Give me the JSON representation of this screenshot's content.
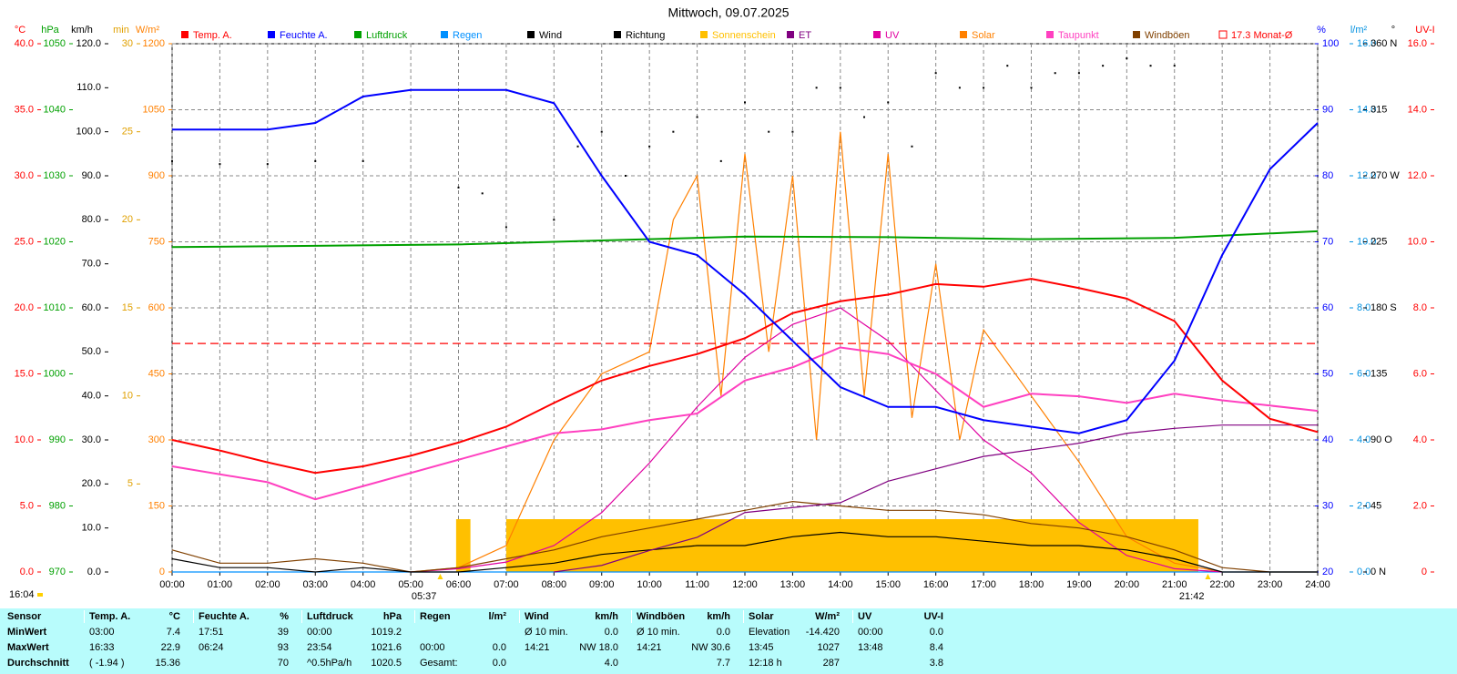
{
  "chart_data": {
    "type": "line",
    "title": "Mittwoch, 09.07.2025",
    "timestamp": "16:04",
    "grid": true,
    "xlim": [
      0,
      24
    ],
    "xticks": [
      {
        "value": 0,
        "label": "00:00"
      },
      {
        "value": 1,
        "label": "01:00"
      },
      {
        "value": 2,
        "label": "02:00"
      },
      {
        "value": 3,
        "label": "03:00"
      },
      {
        "value": 4,
        "label": "04:00"
      },
      {
        "value": 5,
        "label": "05:00"
      },
      {
        "value": 6,
        "label": "06:00"
      },
      {
        "value": 7,
        "label": "07:00"
      },
      {
        "value": 8,
        "label": "08:00"
      },
      {
        "value": 9,
        "label": "09:00"
      },
      {
        "value": 10,
        "label": "10:00"
      },
      {
        "value": 11,
        "label": "11:00"
      },
      {
        "value": 12,
        "label": "12:00"
      },
      {
        "value": 13,
        "label": "13:00"
      },
      {
        "value": 14,
        "label": "14:00"
      },
      {
        "value": 15,
        "label": "15:00"
      },
      {
        "value": 16,
        "label": "16:00"
      },
      {
        "value": 17,
        "label": "17:00"
      },
      {
        "value": 18,
        "label": "18:00"
      },
      {
        "value": 19,
        "label": "19:00"
      },
      {
        "value": 20,
        "label": "20:00"
      },
      {
        "value": 21,
        "label": "21:00"
      },
      {
        "value": 22,
        "label": "22:00"
      },
      {
        "value": 23,
        "label": "23:00"
      },
      {
        "value": 24,
        "label": "24:00"
      }
    ],
    "sun": [
      {
        "value": 5.617,
        "label": "05:37"
      },
      {
        "value": 21.7,
        "label": "21:42"
      }
    ],
    "axes": [
      {
        "unit": "°C",
        "color": "#ff0000",
        "lim": [
          0,
          40
        ],
        "ticks": [
          {
            "value": 0,
            "label": "0.0"
          },
          {
            "value": 5,
            "label": "5.0"
          },
          {
            "value": 10,
            "label": "10.0"
          },
          {
            "value": 15,
            "label": "15.0"
          },
          {
            "value": 20,
            "label": "20.0"
          },
          {
            "value": 25,
            "label": "25.0"
          },
          {
            "value": 30,
            "label": "30.0"
          },
          {
            "value": 35,
            "label": "35.0"
          },
          {
            "value": 40,
            "label": "40.0"
          }
        ]
      },
      {
        "unit": "hPa",
        "color": "#00a000",
        "lim": [
          970,
          1050
        ],
        "ticks": [
          970,
          980,
          990,
          1000,
          1010,
          1020,
          1030,
          1040,
          1050
        ]
      },
      {
        "unit": "km/h",
        "color": "#000000",
        "lim": [
          0,
          120
        ],
        "ticks": [
          {
            "value": 0,
            "label": "0.0"
          },
          {
            "value": 10,
            "label": "10.0"
          },
          {
            "value": 20,
            "label": "20.0"
          },
          {
            "value": 30,
            "label": "30.0"
          },
          {
            "value": 40,
            "label": "40.0"
          },
          {
            "value": 50,
            "label": "50.0"
          },
          {
            "value": 60,
            "label": "60.0"
          },
          {
            "value": 70,
            "label": "70.0"
          },
          {
            "value": 80,
            "label": "80.0"
          },
          {
            "value": 90,
            "label": "90.0"
          },
          {
            "value": 100,
            "label": "100.0"
          },
          {
            "value": 110,
            "label": "110.0"
          },
          {
            "value": 120,
            "label": "120.0"
          }
        ]
      },
      {
        "unit": "min",
        "color": "#e0a000",
        "lim": [
          0,
          30
        ],
        "ticks": [
          5,
          10,
          15,
          20,
          25,
          30
        ]
      },
      {
        "unit": "W/m²",
        "color": "#ff8000",
        "lim": [
          0,
          1200
        ],
        "ticks": [
          0,
          150,
          300,
          450,
          600,
          750,
          900,
          1050,
          1200
        ]
      },
      {
        "unit": "%",
        "color": "#0000ff",
        "lim": [
          20,
          100
        ],
        "ticks": [
          20,
          30,
          40,
          50,
          60,
          70,
          80,
          90,
          100
        ]
      },
      {
        "unit": "l/m²",
        "color": "#0090e0",
        "lim": [
          0,
          16
        ],
        "ticks": [
          {
            "value": 0,
            "label": "0.0"
          },
          {
            "value": 2,
            "label": "2.0"
          },
          {
            "value": 4,
            "label": "4.0"
          },
          {
            "value": 6,
            "label": "6.0"
          },
          {
            "value": 8,
            "label": "8.0"
          },
          {
            "value": 10,
            "label": "10.0"
          },
          {
            "value": 12,
            "label": "12.0"
          },
          {
            "value": 14,
            "label": "14.0"
          },
          {
            "value": 16,
            "label": "16.0"
          }
        ]
      },
      {
        "unit": "°",
        "color": "#000000",
        "lim": [
          0,
          360
        ],
        "ticks": [
          {
            "value": 0,
            "label": "0  N"
          },
          45,
          {
            "value": 90,
            "label": "90  O"
          },
          135,
          {
            "value": 180,
            "label": "180  S"
          },
          225,
          {
            "value": 270,
            "label": "270  W"
          },
          315,
          {
            "value": 360,
            "label": "360  N"
          }
        ]
      },
      {
        "unit": "UV-I",
        "color": "#ff0000",
        "lim": [
          0,
          16
        ],
        "ticks": [
          0,
          {
            "value": 2,
            "label": "2.0"
          },
          {
            "value": 4,
            "label": "4.0"
          },
          {
            "value": 6,
            "label": "6.0"
          },
          {
            "value": 8,
            "label": "8.0"
          },
          {
            "value": 10,
            "label": "10.0"
          },
          {
            "value": 12,
            "label": "12.0"
          },
          {
            "value": 14,
            "label": "14.0"
          },
          {
            "value": 16,
            "label": "16.0"
          }
        ]
      }
    ],
    "series": [
      {
        "name": "Temp. A.",
        "color": "#ff0000",
        "type": "line",
        "axis": 0,
        "x": [
          0,
          1,
          2,
          3,
          4,
          5,
          6,
          7,
          8,
          9,
          10,
          11,
          12,
          13,
          14,
          15,
          16,
          17,
          18,
          19,
          20,
          21,
          22,
          23,
          24
        ],
        "values": [
          10.0,
          9.2,
          8.3,
          7.5,
          8.0,
          8.8,
          9.8,
          11.0,
          12.8,
          14.5,
          15.6,
          16.5,
          17.7,
          19.6,
          20.5,
          21.0,
          21.8,
          21.6,
          22.2,
          21.5,
          20.7,
          19.0,
          14.5,
          11.6,
          10.6
        ]
      },
      {
        "name": "Feuchte A.",
        "color": "#0000ff",
        "type": "line",
        "axis": 5,
        "x": [
          0,
          1,
          2,
          3,
          4,
          5,
          6,
          7,
          8,
          9,
          10,
          11,
          12,
          13,
          14,
          15,
          16,
          17,
          18,
          19,
          20,
          21,
          22,
          23,
          24
        ],
        "values": [
          87,
          87,
          87,
          88,
          92,
          93,
          93,
          93,
          91,
          80,
          70,
          68,
          62,
          55,
          48,
          45,
          45,
          43,
          42,
          41,
          43,
          52,
          68,
          81,
          88
        ]
      },
      {
        "name": "Luftdruck",
        "color": "#00a000",
        "type": "line",
        "axis": 1,
        "x": [
          0,
          3,
          6,
          9,
          12,
          15,
          18,
          21,
          24
        ],
        "values": [
          1019.2,
          1019.4,
          1019.6,
          1020.2,
          1020.8,
          1020.7,
          1020.4,
          1020.6,
          1021.6
        ]
      },
      {
        "name": "Regen",
        "color": "#0090ff",
        "type": "line",
        "axis": 6,
        "x": [
          0,
          24
        ],
        "values": [
          0,
          0
        ]
      },
      {
        "name": "Wind",
        "color": "#000000",
        "type": "line",
        "axis": 2,
        "x": [
          0,
          1,
          2,
          3,
          4,
          5,
          6,
          7,
          8,
          9,
          10,
          11,
          12,
          13,
          14,
          15,
          16,
          17,
          18,
          19,
          20,
          21,
          22,
          23,
          24
        ],
        "values": [
          3,
          1,
          1,
          0,
          1,
          0,
          0,
          1,
          2,
          4,
          5,
          6,
          6,
          8,
          9,
          8,
          8,
          7,
          6,
          6,
          5,
          3,
          0,
          0,
          0
        ]
      },
      {
        "name": "Richtung",
        "color": "#000000",
        "type": "scatter",
        "axis": 7,
        "x": [
          0,
          1,
          2,
          3,
          4,
          6,
          6.5,
          7,
          8,
          8.5,
          9,
          9.5,
          10,
          10.5,
          11,
          11.5,
          12,
          12.5,
          13,
          13.5,
          14,
          14.5,
          15,
          15.5,
          16,
          16.5,
          17,
          17.5,
          18,
          18.5,
          19,
          19.5,
          20,
          20.5,
          21
        ],
        "values": [
          280,
          278,
          278,
          280,
          280,
          262,
          258,
          235,
          240,
          290,
          300,
          270,
          290,
          300,
          310,
          280,
          320,
          300,
          300,
          330,
          330,
          310,
          320,
          290,
          340,
          330,
          330,
          345,
          330,
          340,
          340,
          345,
          350,
          345,
          345
        ]
      },
      {
        "name": "Sonnenschein",
        "color": "#ffc000",
        "type": "bar",
        "axis": 3,
        "bins": [
          5.95,
          6.25,
          7.0,
          21.5
        ],
        "values": [
          3.0,
          0,
          3.0
        ]
      },
      {
        "name": "ET",
        "color": "#800080",
        "type": "line",
        "axis": 6,
        "x": [
          8,
          9,
          10,
          11,
          12,
          14,
          15,
          17,
          19,
          20,
          21,
          22,
          24
        ],
        "values": [
          0,
          0.2,
          0.65,
          1.05,
          1.8,
          2.1,
          2.75,
          3.5,
          3.9,
          4.2,
          4.35,
          4.45,
          4.45
        ]
      },
      {
        "name": "UV",
        "color": "#e000a0",
        "type": "line",
        "axis": 8,
        "x": [
          5,
          6,
          7,
          8,
          9,
          10,
          11,
          12,
          13,
          14,
          15,
          16,
          17,
          18,
          19,
          20,
          21,
          22
        ],
        "values": [
          0,
          0.1,
          0.3,
          0.8,
          1.8,
          3.3,
          5.0,
          6.5,
          7.5,
          8.0,
          7.0,
          5.5,
          4.0,
          3.0,
          1.5,
          0.5,
          0.1,
          0
        ]
      },
      {
        "name": "Solar",
        "color": "#ff8000",
        "type": "line",
        "axis": 4,
        "x": [
          5,
          6,
          7,
          8,
          9,
          10,
          10.5,
          11,
          11.5,
          12,
          12.5,
          13,
          13.5,
          14,
          14.5,
          15,
          15.5,
          16,
          16.5,
          17,
          18,
          19,
          20,
          21,
          22
        ],
        "values": [
          0,
          10,
          60,
          300,
          450,
          500,
          800,
          900,
          400,
          950,
          500,
          900,
          300,
          1000,
          400,
          950,
          350,
          700,
          300,
          550,
          400,
          250,
          80,
          20,
          0
        ]
      },
      {
        "name": "Taupunkt",
        "color": "#ff40c0",
        "type": "line",
        "axis": 0,
        "x": [
          0,
          2,
          3,
          4,
          6,
          8,
          9,
          10,
          11,
          12,
          13,
          14,
          15,
          16,
          17,
          18,
          19,
          20,
          21,
          22,
          24
        ],
        "values": [
          8.0,
          6.8,
          5.5,
          6.5,
          8.5,
          10.5,
          10.8,
          11.5,
          12.0,
          14.5,
          15.5,
          17.0,
          16.5,
          15.0,
          12.5,
          13.5,
          13.3,
          12.8,
          13.5,
          13.0,
          12.2
        ]
      },
      {
        "name": "Windböen",
        "color": "#804000",
        "type": "line",
        "axis": 2,
        "x": [
          0,
          1,
          2,
          3,
          4,
          5,
          6,
          7,
          8,
          9,
          10,
          11,
          12,
          13,
          14,
          15,
          16,
          17,
          18,
          19,
          20,
          21,
          22,
          23,
          24
        ],
        "values": [
          5,
          2,
          2,
          3,
          2,
          0,
          1,
          3,
          5,
          8,
          10,
          12,
          14,
          16,
          15,
          14,
          14,
          13,
          11,
          10,
          8,
          5,
          1,
          0,
          0
        ]
      }
    ],
    "reference": {
      "value": 17.3,
      "label": "17.3 Monat-Ø",
      "color": "#ff0000",
      "axis": 0
    }
  },
  "table": {
    "header": [
      "Sensor",
      "Temp. A.",
      "°C",
      "Feuchte A.",
      "%",
      "Luftdruck",
      "hPa",
      "Regen",
      "l/m²",
      "Wind",
      "km/h",
      "Windböen",
      "km/h",
      "Solar",
      "W/m²",
      "UV",
      "UV-I"
    ],
    "rows": [
      [
        "MinWert",
        "03:00",
        "7.4",
        "17:51",
        "39",
        "00:00",
        "1019.2",
        null,
        null,
        "Ø 10 min.",
        "0.0",
        "Ø 10 min.",
        "0.0",
        "Elevation",
        "-14.420",
        "00:00",
        "0.0"
      ],
      [
        "MaxWert",
        "16:33",
        "22.9",
        "06:24",
        "93",
        "23:54",
        "1021.6",
        "00:00",
        "0.0",
        "14:21",
        "NW 18.0",
        "14:21",
        "NW 30.6",
        "13:45",
        "1027",
        "13:48",
        "8.4"
      ],
      [
        "Durchschnitt",
        "( -1.94 )",
        "15.36",
        null,
        "70",
        "^0.5hPa/h",
        "1020.5",
        "Gesamt:",
        "0.0",
        null,
        "4.0",
        null,
        "7.7",
        "12:18 h",
        "287",
        null,
        "3.8"
      ]
    ]
  }
}
